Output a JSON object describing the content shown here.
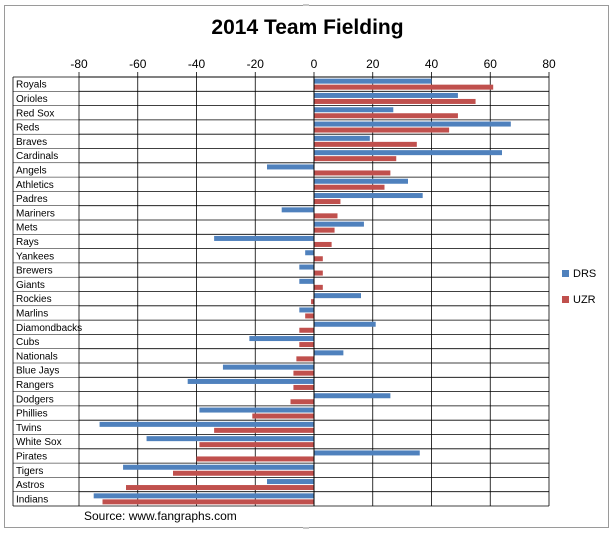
{
  "chart_data": {
    "type": "bar",
    "orientation": "horizontal",
    "title": "2014 Team Fielding",
    "source": "Source: www.fangraphs.com",
    "xlim": [
      -80,
      80
    ],
    "xticks": [
      "-80",
      "-60",
      "-40",
      "-20",
      "0",
      "20",
      "40",
      "60",
      "80"
    ],
    "xtick_values": [
      -80,
      -60,
      -40,
      -20,
      0,
      20,
      40,
      60,
      80
    ],
    "grid": true,
    "legend_position": "right",
    "categories": [
      "Royals",
      "Orioles",
      "Red Sox",
      "Reds",
      "Braves",
      "Cardinals",
      "Angels",
      "Athletics",
      "Padres",
      "Mariners",
      "Mets",
      "Rays",
      "Yankees",
      "Brewers",
      "Giants",
      "Rockies",
      "Marlins",
      "Diamondbacks",
      "Cubs",
      "Nationals",
      "Blue Jays",
      "Rangers",
      "Dodgers",
      "Phillies",
      "Twins",
      "White Sox",
      "Pirates",
      "Tigers",
      "Astros",
      "Indians"
    ],
    "series": [
      {
        "name": "DRS",
        "color": "#4f81bd",
        "values": [
          40,
          49,
          27,
          67,
          19,
          64,
          -16,
          32,
          37,
          -11,
          17,
          -34,
          -3,
          -5,
          -5,
          16,
          -5,
          21,
          -22,
          10,
          -31,
          -43,
          26,
          -39,
          -73,
          -57,
          36,
          -65,
          -16,
          -75
        ]
      },
      {
        "name": "UZR",
        "color": "#c0504d",
        "values": [
          61,
          55,
          49,
          46,
          35,
          28,
          26,
          24,
          9,
          8,
          7,
          6,
          3,
          3,
          3,
          -1,
          -3,
          -5,
          -5,
          -6,
          -7,
          -7,
          -8,
          -21,
          -34,
          -39,
          -40,
          -48,
          -64,
          -72
        ]
      }
    ]
  }
}
